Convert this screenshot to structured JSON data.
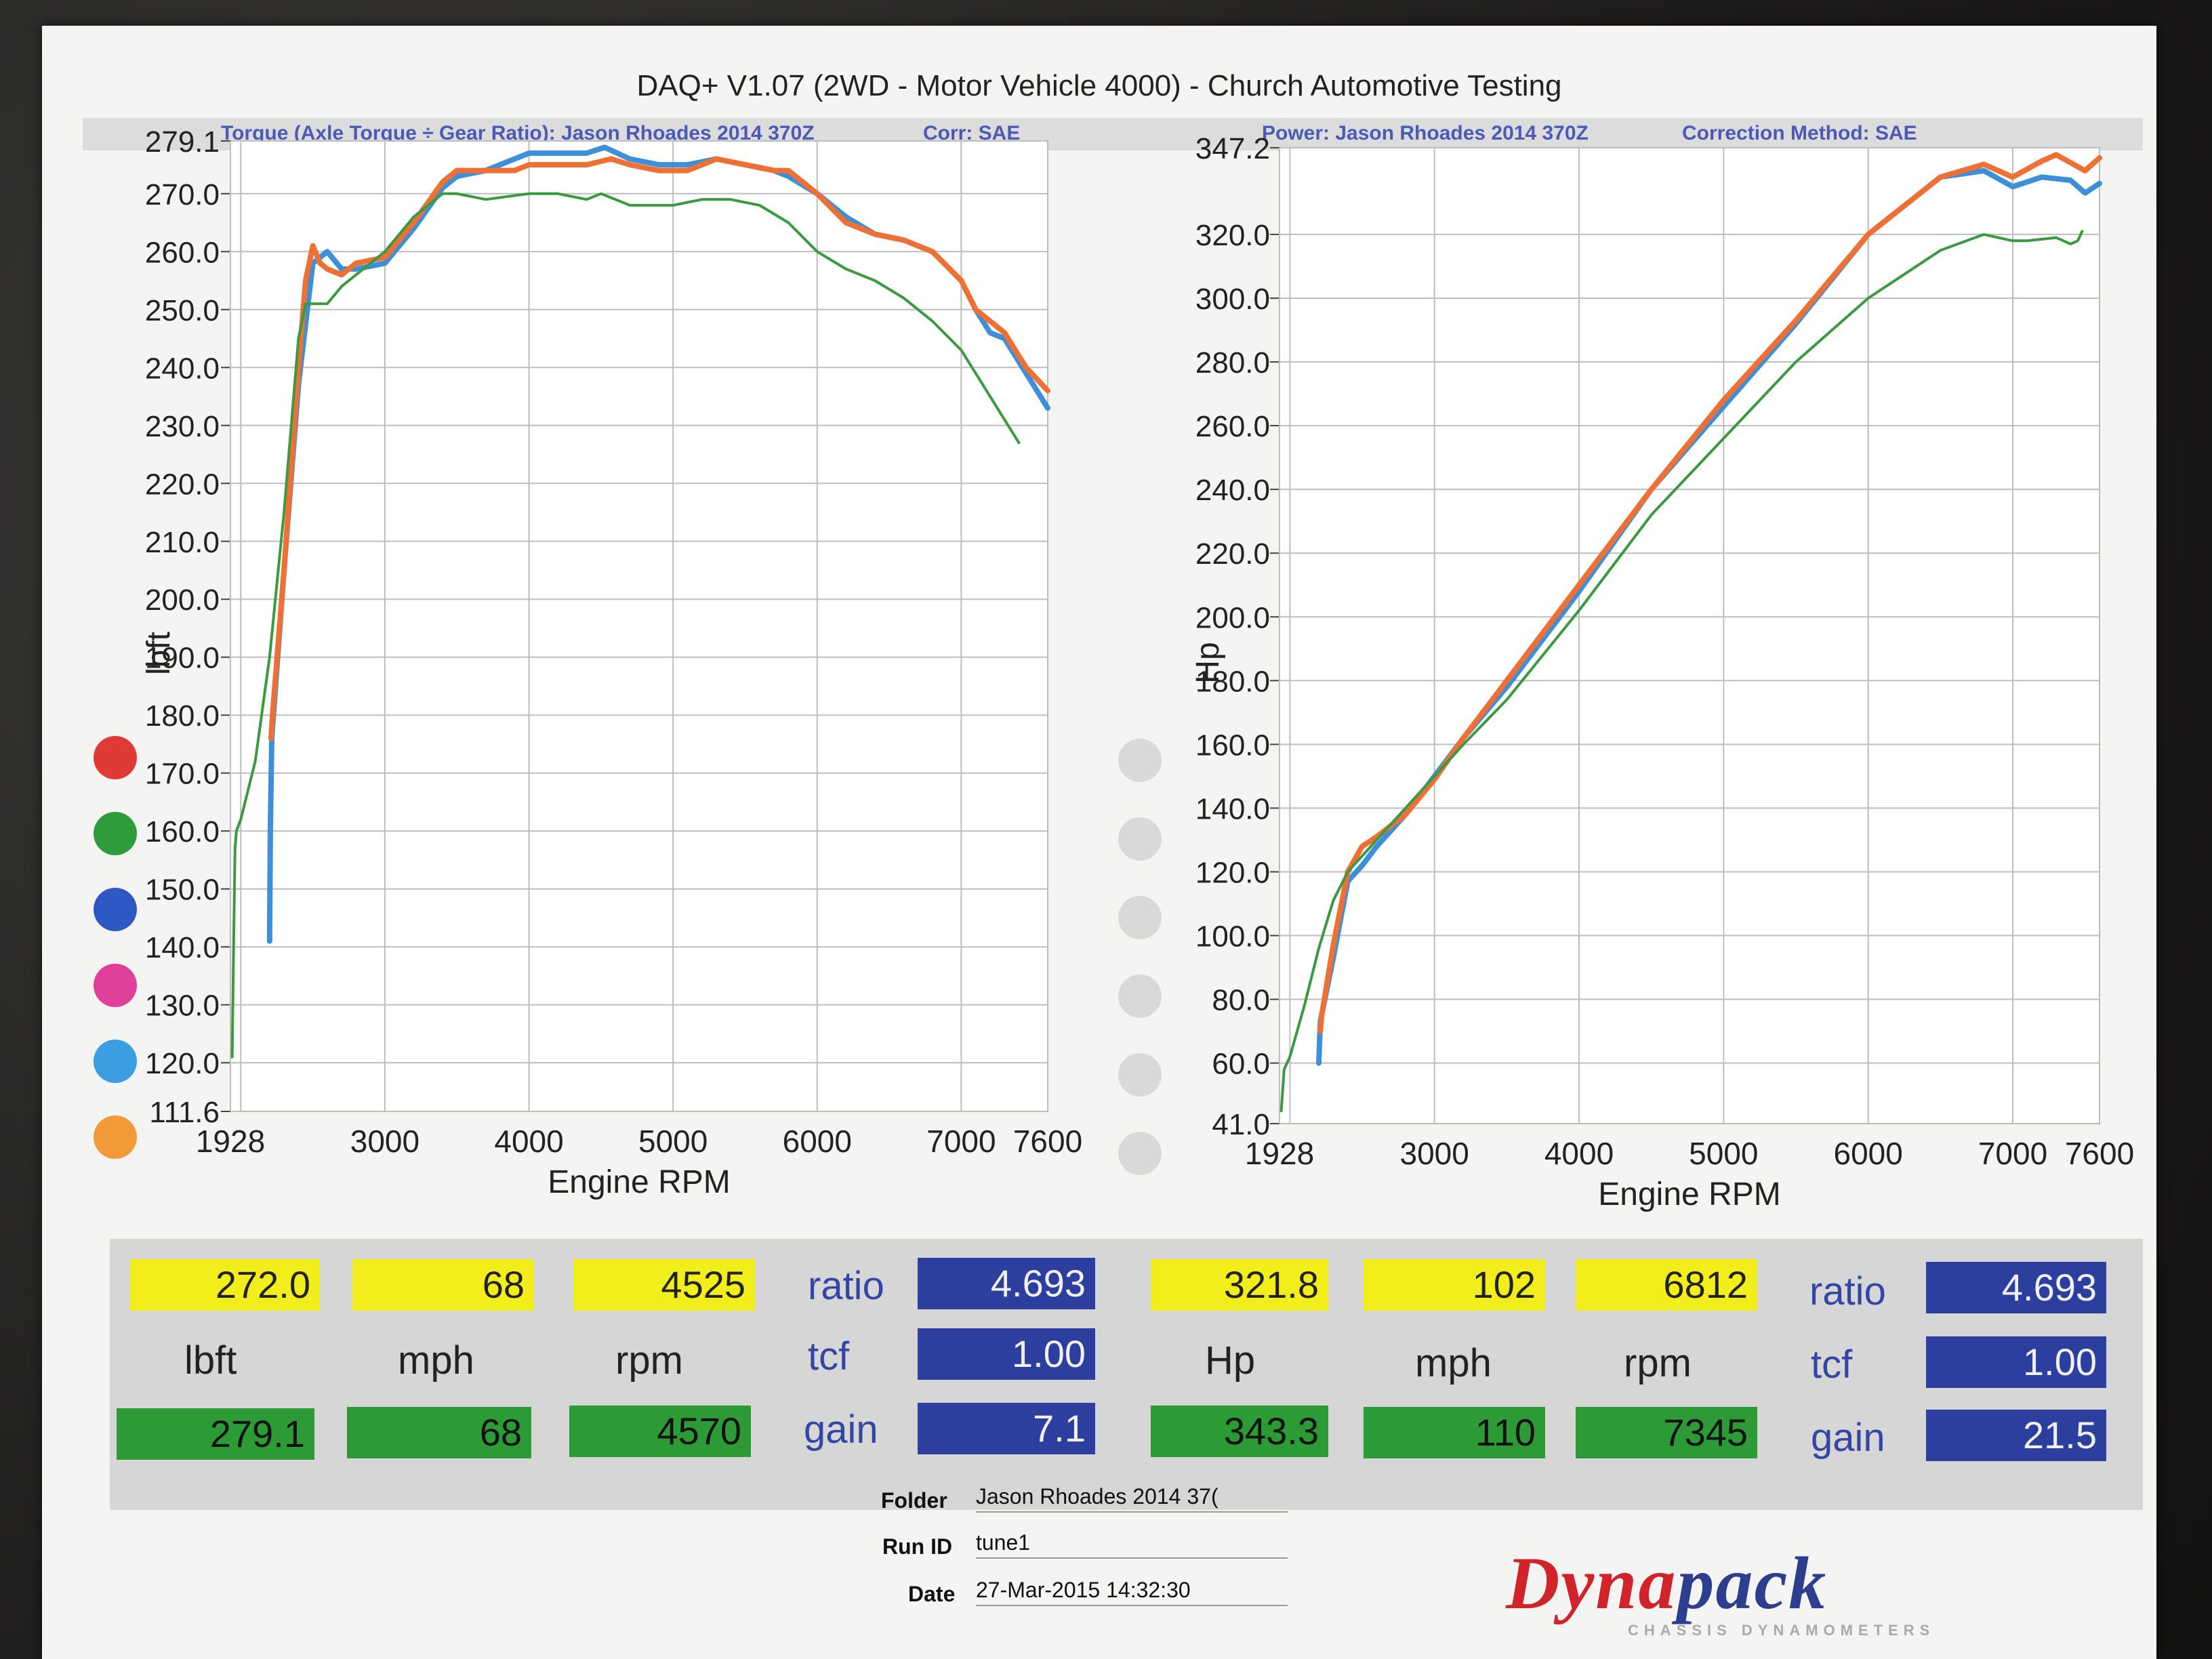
{
  "title": "DAQ+ V1.07 (2WD - Motor Vehicle 4000) - Church Automotive Testing",
  "left_header": {
    "label": "Torque (Axle Torque ÷ Gear Ratio): Jason Rhoades 2014 370Z",
    "corr": "Corr: SAE"
  },
  "right_header": {
    "label": "Power: Jason Rhoades 2014 370Z",
    "corr": "Correction Method: SAE"
  },
  "legend_colors": [
    "#e03a36",
    "#2e9c3a",
    "#2f58c4",
    "#e0409a",
    "#3a9ee0",
    "#f29a3a"
  ],
  "chart_data": [
    {
      "type": "line",
      "title": "",
      "xlabel": "Engine RPM",
      "ylabel": "lbft",
      "xlim": [
        1928,
        7600
      ],
      "ylim": [
        111.6,
        279.1
      ],
      "x_ticks": [
        "1928",
        "3000",
        "4000",
        "5000",
        "6000",
        "7000",
        "7600"
      ],
      "y_ticks": [
        "279.1",
        "270.0",
        "260.0",
        "250.0",
        "240.0",
        "230.0",
        "220.0",
        "210.0",
        "200.0",
        "190.0",
        "180.0",
        "170.0",
        "160.0",
        "150.0",
        "140.0",
        "130.0",
        "120.0",
        "111.6"
      ],
      "grid": true,
      "series": [
        {
          "color": "#3d8fd9",
          "x": [
            2200,
            2205,
            2215,
            2300,
            2400,
            2500,
            2600,
            2700,
            2800,
            3000,
            3200,
            3400,
            3500,
            3700,
            3900,
            4000,
            4200,
            4400,
            4525,
            4700,
            4900,
            5100,
            5300,
            5500,
            5700,
            5800,
            6000,
            6200,
            6400,
            6600,
            6800,
            7000,
            7100,
            7200,
            7300,
            7450,
            7600
          ],
          "y": [
            141,
            160,
            176,
            205,
            237,
            258,
            260,
            257,
            257,
            258,
            264,
            271,
            273,
            274,
            276,
            277,
            277,
            277,
            278,
            276,
            275,
            275,
            276,
            275,
            274,
            273,
            270,
            266,
            263,
            262,
            260,
            255,
            250,
            246,
            245,
            239,
            233
          ]
        },
        {
          "color": "#ee7034",
          "x": [
            2210,
            2220,
            2300,
            2400,
            2450,
            2500,
            2550,
            2600,
            2700,
            2800,
            3000,
            3200,
            3400,
            3500,
            3700,
            3900,
            4000,
            4200,
            4400,
            4570,
            4700,
            4900,
            5100,
            5300,
            5500,
            5700,
            5800,
            6000,
            6200,
            6400,
            6600,
            6800,
            7000,
            7100,
            7300,
            7450,
            7600
          ],
          "y": [
            176,
            180,
            205,
            240,
            255,
            261,
            258,
            257,
            256,
            258,
            259,
            265,
            272,
            274,
            274,
            274,
            275,
            275,
            275,
            276,
            275,
            274,
            274,
            276,
            275,
            274,
            274,
            270,
            265,
            263,
            262,
            260,
            255,
            250,
            246,
            240,
            236
          ]
        },
        {
          "color": "#3b9a3f",
          "x": [
            1940,
            1950,
            1960,
            1970,
            2000,
            2100,
            2200,
            2300,
            2400,
            2450,
            2600,
            2700,
            3000,
            3200,
            3400,
            3500,
            3700,
            4000,
            4200,
            4400,
            4500,
            4700,
            5000,
            5200,
            5400,
            5600,
            5800,
            6000,
            6200,
            6400,
            6600,
            6800,
            7000,
            7200,
            7400
          ],
          "y": [
            121,
            140,
            157,
            160,
            162,
            172,
            190,
            215,
            245,
            251,
            251,
            254,
            260,
            266,
            270,
            270,
            269,
            270,
            270,
            269,
            270,
            268,
            268,
            269,
            269,
            268,
            265,
            260,
            257,
            255,
            252,
            248,
            243,
            235,
            227
          ]
        }
      ]
    },
    {
      "type": "line",
      "title": "",
      "xlabel": "Engine RPM",
      "ylabel": "Hp",
      "xlim": [
        1928,
        7600
      ],
      "ylim": [
        41.0,
        347.2
      ],
      "x_ticks": [
        "1928",
        "3000",
        "4000",
        "5000",
        "6000",
        "7000",
        "7600"
      ],
      "y_ticks": [
        "347.2",
        "320.0",
        "300.0",
        "280.0",
        "260.0",
        "240.0",
        "220.0",
        "200.0",
        "180.0",
        "160.0",
        "140.0",
        "120.0",
        "100.0",
        "80.0",
        "60.0",
        "41.0"
      ],
      "grid": true,
      "series": [
        {
          "color": "#3d8fd9",
          "x": [
            2200,
            2210,
            2300,
            2400,
            2500,
            2600,
            2800,
            3000,
            3200,
            3500,
            4000,
            4500,
            5000,
            5500,
            6000,
            6500,
            6800,
            7000,
            7200,
            7400,
            7500,
            7600
          ],
          "y": [
            60,
            73,
            93,
            117,
            122,
            128,
            138,
            150,
            162,
            178,
            208,
            240,
            266,
            292,
            320,
            338,
            340,
            335,
            338,
            337,
            333,
            336
          ]
        },
        {
          "color": "#ee7034",
          "x": [
            2210,
            2220,
            2300,
            2400,
            2500,
            2600,
            2800,
            3000,
            3200,
            3500,
            4000,
            4500,
            5000,
            5500,
            6000,
            6500,
            6800,
            7000,
            7200,
            7300,
            7500,
            7600
          ],
          "y": [
            70,
            75,
            97,
            120,
            128,
            131,
            138,
            149,
            162,
            180,
            210,
            240,
            268,
            293,
            320,
            338,
            342,
            338,
            343,
            345,
            340,
            344
          ]
        },
        {
          "color": "#3b9a3f",
          "x": [
            1940,
            1960,
            2000,
            2100,
            2200,
            2300,
            2400,
            2500,
            2700,
            3000,
            3200,
            3500,
            4000,
            4500,
            5000,
            5500,
            6000,
            6500,
            6800,
            7000,
            7100,
            7300,
            7400,
            7450,
            7480
          ],
          "y": [
            45,
            58,
            62,
            78,
            96,
            111,
            120,
            125,
            135,
            150,
            160,
            174,
            202,
            232,
            256,
            280,
            300,
            315,
            320,
            318,
            318,
            319,
            317,
            318,
            321
          ]
        }
      ]
    }
  ],
  "torque_readout": {
    "current_value": "272.0",
    "current_mph": "68",
    "current_rpm": "4525",
    "peak_value": "279.1",
    "peak_mph": "68",
    "peak_rpm": "4570",
    "unit": "lbft",
    "mph_label": "mph",
    "rpm_label": "rpm",
    "ratio_label": "ratio",
    "ratio": "4.693",
    "tcf_label": "tcf",
    "tcf": "1.00",
    "gain_label": "gain",
    "gain": "7.1"
  },
  "power_readout": {
    "current_value": "321.8",
    "current_mph": "102",
    "current_rpm": "6812",
    "peak_value": "343.3",
    "peak_mph": "110",
    "peak_rpm": "7345",
    "unit": "Hp",
    "mph_label": "mph",
    "rpm_label": "rpm",
    "ratio_label": "ratio",
    "ratio": "4.693",
    "tcf_label": "tcf",
    "tcf": "1.00",
    "gain_label": "gain",
    "gain": "21.5"
  },
  "footer": {
    "folder_label": "Folder",
    "folder": "Jason Rhoades 2014 37(",
    "run_label": "Run ID",
    "run": "tune1",
    "date_label": "Date",
    "date": "27-Mar-2015 14:32:30"
  },
  "logo": {
    "dyna": "Dyna",
    "pack": "pack",
    "sub": "CHASSIS DYNAMOMETERS"
  }
}
